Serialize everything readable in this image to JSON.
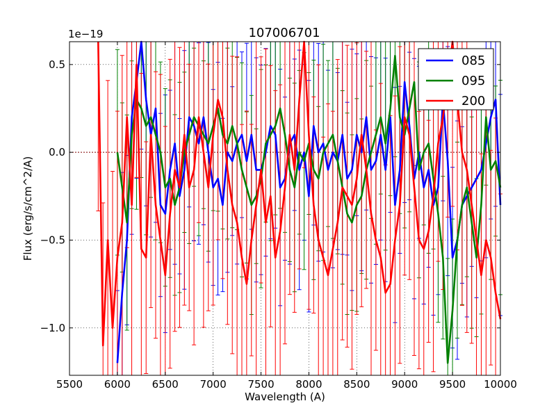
{
  "chart_data": {
    "type": "line",
    "title": "107006701",
    "xlabel": "Wavelength (A)",
    "ylabel": "Flux (erg/s/cm^2/A)",
    "offset_label": "1e−19",
    "xlim": [
      5500,
      10000
    ],
    "ylim": [
      -1.27,
      0.63
    ],
    "grid": true,
    "legend_position": "top-right",
    "x_ticks": [
      5500,
      6000,
      6500,
      7000,
      7500,
      8000,
      8500,
      9000,
      9500,
      10000
    ],
    "x_tick_labels": [
      "5500",
      "6000",
      "6500",
      "7000",
      "7500",
      "8000",
      "8500",
      "9000",
      "9500",
      "10000"
    ],
    "y_ticks": [
      0.5,
      0.0,
      -0.5,
      -1.0
    ],
    "y_tick_labels": [
      "0.5",
      "0.0",
      "−0.5",
      "−1.0"
    ],
    "series": [
      {
        "name": "085",
        "color": "#0000ff",
        "x": [
          6000,
          6050,
          6100,
          6150,
          6200,
          6250,
          6300,
          6350,
          6400,
          6450,
          6500,
          6550,
          6600,
          6650,
          6700,
          6750,
          6800,
          6850,
          6900,
          6950,
          7000,
          7050,
          7100,
          7150,
          7200,
          7250,
          7300,
          7350,
          7400,
          7450,
          7500,
          7550,
          7600,
          7650,
          7700,
          7750,
          7800,
          7850,
          7900,
          7950,
          8000,
          8050,
          8100,
          8150,
          8200,
          8250,
          8300,
          8350,
          8400,
          8450,
          8500,
          8550,
          8600,
          8650,
          8700,
          8750,
          8800,
          8850,
          8900,
          8950,
          9000,
          9050,
          9100,
          9150,
          9200,
          9250,
          9300,
          9350,
          9400,
          9450,
          9500,
          9550,
          9600,
          9650,
          9700,
          9750,
          9800,
          9850,
          9900,
          9950,
          10000
        ],
        "values": [
          -1.2,
          -0.8,
          -0.5,
          0.2,
          0.4,
          0.65,
          0.3,
          0.1,
          0.25,
          -0.3,
          -0.35,
          -0.1,
          0.05,
          -0.25,
          -0.1,
          0.2,
          0.15,
          0.05,
          0.2,
          0.0,
          -0.2,
          -0.15,
          -0.3,
          0.0,
          -0.05,
          0.05,
          0.1,
          -0.05,
          0.1,
          -0.1,
          -0.1,
          0.0,
          0.15,
          0.1,
          -0.2,
          -0.15,
          0.05,
          0.1,
          -0.1,
          0.0,
          -0.25,
          0.15,
          0.0,
          0.05,
          -0.1,
          0.0,
          -0.05,
          0.1,
          -0.15,
          -0.1,
          0.1,
          0.0,
          0.2,
          -0.1,
          -0.05,
          0.1,
          -0.1,
          0.2,
          -0.3,
          -0.1,
          0.4,
          0.15,
          -0.15,
          0.0,
          -0.2,
          -0.1,
          -0.3,
          -0.2,
          0.3,
          -0.05,
          -0.6,
          -0.5,
          -0.3,
          -0.25,
          -0.2,
          -0.15,
          -0.1,
          0.05,
          0.2,
          0.3,
          -0.3
        ]
      },
      {
        "name": "095",
        "color": "#008000",
        "x": [
          6000,
          6050,
          6100,
          6150,
          6200,
          6250,
          6300,
          6350,
          6400,
          6450,
          6500,
          6550,
          6600,
          6650,
          6700,
          6750,
          6800,
          6850,
          6900,
          6950,
          7000,
          7050,
          7100,
          7150,
          7200,
          7250,
          7300,
          7350,
          7400,
          7450,
          7500,
          7550,
          7600,
          7650,
          7700,
          7750,
          7800,
          7850,
          7900,
          7950,
          8000,
          8050,
          8100,
          8150,
          8200,
          8250,
          8300,
          8350,
          8400,
          8450,
          8500,
          8550,
          8600,
          8650,
          8700,
          8750,
          8800,
          8850,
          8900,
          8950,
          9000,
          9050,
          9100,
          9150,
          9200,
          9250,
          9300,
          9350,
          9400,
          9450,
          9500,
          9550,
          9600,
          9650,
          9700,
          9750,
          9800,
          9850,
          9900,
          9950,
          10000
        ],
        "values": [
          0.0,
          -0.2,
          -0.4,
          0.1,
          0.3,
          0.25,
          0.15,
          0.2,
          0.1,
          0.0,
          -0.2,
          -0.15,
          -0.3,
          -0.2,
          0.0,
          0.1,
          0.2,
          0.15,
          0.1,
          0.05,
          0.15,
          0.25,
          0.1,
          0.05,
          0.15,
          0.05,
          -0.1,
          -0.2,
          -0.3,
          -0.25,
          -0.15,
          0.05,
          0.1,
          0.15,
          0.25,
          0.1,
          -0.1,
          -0.2,
          0.0,
          -0.05,
          0.05,
          -0.1,
          -0.15,
          0.0,
          0.05,
          0.1,
          -0.05,
          -0.2,
          -0.35,
          -0.4,
          -0.3,
          -0.25,
          -0.1,
          0.0,
          0.1,
          0.2,
          0.05,
          0.25,
          0.55,
          0.2,
          0.1,
          0.25,
          0.4,
          -0.1,
          0.0,
          0.05,
          -0.15,
          -0.35,
          -0.6,
          -1.2,
          -0.9,
          -0.5,
          -0.3,
          -0.2,
          -0.4,
          -0.6,
          -0.3,
          0.2,
          -0.1,
          -0.05,
          -0.2
        ]
      },
      {
        "name": "200",
        "color": "#ff0000",
        "x": [
          5800,
          5850,
          5900,
          5950,
          6000,
          6050,
          6100,
          6150,
          6200,
          6250,
          6300,
          6350,
          6400,
          6450,
          6500,
          6550,
          6600,
          6650,
          6700,
          6750,
          6800,
          6850,
          6900,
          6950,
          7000,
          7050,
          7100,
          7150,
          7200,
          7250,
          7300,
          7350,
          7400,
          7450,
          7500,
          7550,
          7600,
          7650,
          7700,
          7750,
          7800,
          7850,
          7900,
          7950,
          8000,
          8050,
          8100,
          8150,
          8200,
          8250,
          8300,
          8350,
          8400,
          8450,
          8500,
          8550,
          8600,
          8650,
          8700,
          8750,
          8800,
          8850,
          8900,
          8950,
          9000,
          9050,
          9100,
          9150,
          9200,
          9250,
          9300,
          9350,
          9400,
          9450,
          9500,
          9550,
          9600,
          9650,
          9700,
          9750,
          9800,
          9850,
          9900,
          9950,
          10000
        ],
        "values": [
          0.63,
          -1.1,
          -0.5,
          -1.0,
          -0.6,
          -0.4,
          0.2,
          -0.3,
          0.5,
          -0.55,
          -0.6,
          0.1,
          -0.3,
          -0.5,
          -0.7,
          -0.35,
          -0.1,
          -0.2,
          0.1,
          -0.2,
          -0.1,
          0.2,
          0.0,
          -0.2,
          0.1,
          0.3,
          0.2,
          -0.1,
          -0.3,
          -0.4,
          -0.6,
          -0.75,
          -0.5,
          -0.3,
          -0.1,
          -0.4,
          -0.25,
          -0.6,
          -0.45,
          -0.2,
          0.1,
          -0.1,
          0.3,
          0.63,
          0.1,
          -0.3,
          -0.5,
          -0.6,
          -0.7,
          -0.55,
          -0.4,
          -0.2,
          -0.25,
          -0.3,
          -0.15,
          0.1,
          -0.1,
          -0.35,
          -0.5,
          -0.6,
          -0.8,
          -0.75,
          -0.5,
          -0.3,
          0.2,
          0.1,
          -0.2,
          -0.5,
          -0.55,
          -0.45,
          -0.25,
          0.05,
          0.2,
          0.4,
          0.63,
          0.3,
          0.0,
          -0.1,
          -0.3,
          -0.5,
          -0.7,
          -0.5,
          -0.6,
          -0.8,
          -0.95
        ]
      }
    ]
  }
}
